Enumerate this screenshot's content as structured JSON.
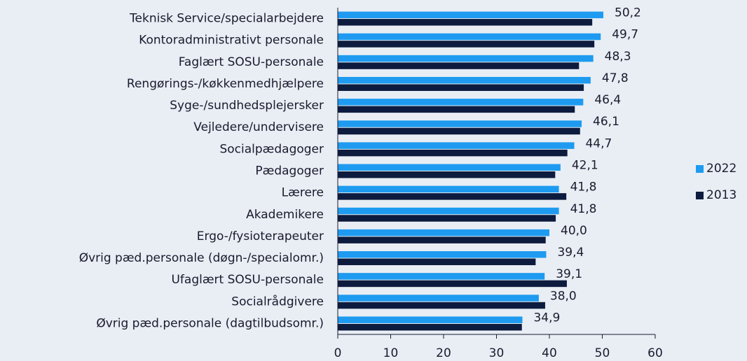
{
  "chart_data": {
    "type": "bar",
    "orientation": "horizontal",
    "categories": [
      "Teknisk Service/specialarbejdere",
      "Kontoradministrativt personale",
      "Faglært SOSU-personale",
      "Rengørings-/køkkenmedhjælpere",
      "Syge-/sundhedsplejersker",
      "Vejledere/undervisere",
      "Socialpædagoger",
      "Pædagoger",
      "Lærere",
      "Akademikere",
      "Ergo-/fysioterapeuter",
      "Øvrig pæd.personale (døgn-/specialomr.)",
      "Ufaglært SOSU-personale",
      "Socialrådgivere",
      "Øvrig pæd.personale (dagtilbudsomr.)"
    ],
    "series": [
      {
        "name": "2022",
        "color": "#1e9bf0",
        "values": [
          50.2,
          49.7,
          48.3,
          47.8,
          46.4,
          46.1,
          44.7,
          42.1,
          41.8,
          41.8,
          40.0,
          39.4,
          39.1,
          38.0,
          34.9
        ],
        "value_labels": [
          "50,2",
          "49,7",
          "48,3",
          "47,8",
          "46,4",
          "46,1",
          "44,7",
          "42,1",
          "41,8",
          "41,8",
          "40,0",
          "39,4",
          "39,1",
          "38,0",
          "34,9"
        ]
      },
      {
        "name": "2013",
        "color": "#0d1b3e",
        "values": [
          48.1,
          48.5,
          45.6,
          46.5,
          44.8,
          45.8,
          43.4,
          41.1,
          43.2,
          41.2,
          39.3,
          37.4,
          43.3,
          39.2,
          34.8
        ]
      }
    ],
    "xlim": [
      0,
      60
    ],
    "xticks": [
      0,
      10,
      20,
      30,
      40,
      50,
      60
    ],
    "legend": "right"
  }
}
